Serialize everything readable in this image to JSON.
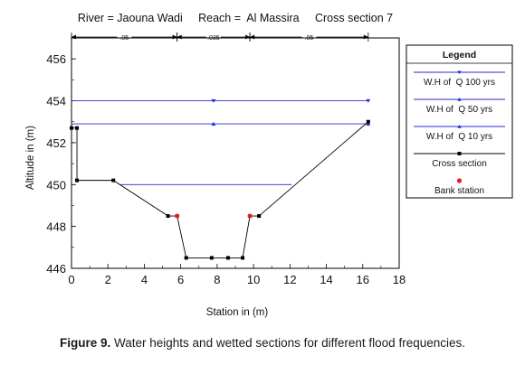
{
  "chart_data": {
    "type": "line",
    "title": "River = Jaouna Wadi     Reach =  Al Massira     Cross section 7",
    "xlabel": "Station in (m)",
    "ylabel": "Altitude in (m)",
    "xlim": [
      0,
      18
    ],
    "ylim": [
      446,
      457
    ],
    "xticks": [
      0,
      2,
      4,
      6,
      8,
      10,
      12,
      14,
      16,
      18
    ],
    "yticks": [
      446,
      448,
      450,
      452,
      454,
      456
    ],
    "manning": [
      {
        "label": ".05",
        "from": 0,
        "to": 5.8
      },
      {
        "label": ".035",
        "from": 5.8,
        "to": 9.8
      },
      {
        "label": ".05",
        "from": 9.8,
        "to": 16.3
      }
    ],
    "cross_section": {
      "name": "Cross section",
      "color": "#000000",
      "points": [
        [
          0,
          452.7
        ],
        [
          0.3,
          452.7
        ],
        [
          0.3,
          450.2
        ],
        [
          2.3,
          450.2
        ],
        [
          5.3,
          448.5
        ],
        [
          5.8,
          448.5
        ],
        [
          6.3,
          446.5
        ],
        [
          7.7,
          446.5
        ],
        [
          8.6,
          446.5
        ],
        [
          9.4,
          446.5
        ],
        [
          9.8,
          448.5
        ],
        [
          10.3,
          448.5
        ],
        [
          16.3,
          453.0
        ]
      ]
    },
    "bank_stations": {
      "name": "Bank station",
      "color": "#e3211d",
      "points": [
        [
          5.8,
          448.5
        ],
        [
          9.8,
          448.5
        ]
      ]
    },
    "series": [
      {
        "name": "W.H of  Q 100 yrs",
        "y": 454.0,
        "x_range": [
          0,
          16.3
        ],
        "marker_x": [
          7.8,
          16.3
        ],
        "color": "#2929d6"
      },
      {
        "name": "W.H of  Q 50 yrs",
        "y": 452.9,
        "x_range": [
          0,
          16.3
        ],
        "marker_x": [
          7.8,
          16.3
        ],
        "color": "#2929d6"
      },
      {
        "name": "W.H of  Q 10 yrs",
        "y": 450.0,
        "x_range": [
          2.7,
          12.1
        ],
        "marker_x": [],
        "color": "#2929d6"
      }
    ],
    "legend": {
      "title": "Legend",
      "position": "right",
      "entries": [
        {
          "label": "W.H of  Q 100 yrs",
          "kind": "line",
          "color": "#2929d6"
        },
        {
          "label": "W.H of  Q 50 yrs",
          "kind": "line",
          "color": "#2929d6"
        },
        {
          "label": "W.H of  Q 10 yrs",
          "kind": "line",
          "color": "#2929d6"
        },
        {
          "label": "Cross section",
          "kind": "line",
          "color": "#000000"
        },
        {
          "label": "Bank station",
          "kind": "marker",
          "color": "#e3211d"
        }
      ]
    },
    "grid": false
  },
  "caption": {
    "label": "Figure 9.",
    "text": " Water heights and wetted sections for different flood frequencies."
  }
}
